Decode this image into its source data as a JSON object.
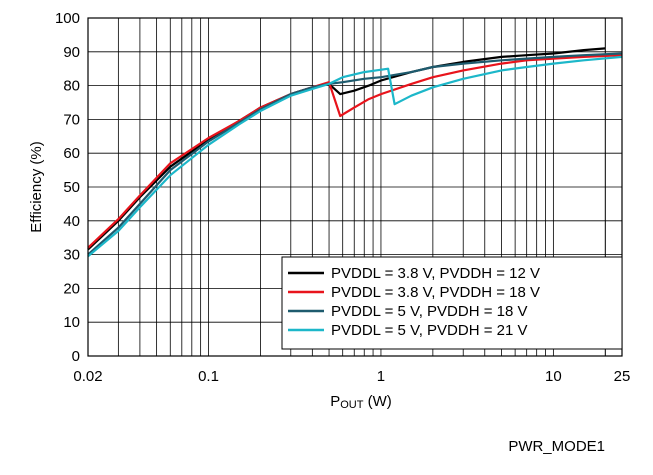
{
  "chart_data": {
    "type": "line",
    "xlabel_main": "P",
    "xlabel_sub": "OUT",
    "xlabel_unit": " (W)",
    "ylabel": "Efficiency (%)",
    "x_scale": "log",
    "xlim": [
      0.02,
      25
    ],
    "ylim": [
      0,
      100
    ],
    "x_ticks": [
      "0.02",
      "0.1",
      "1",
      "10",
      "25"
    ],
    "x_tick_values": [
      0.02,
      0.1,
      1,
      10,
      25
    ],
    "y_ticks": [
      "0",
      "10",
      "20",
      "30",
      "40",
      "50",
      "60",
      "70",
      "80",
      "90",
      "100"
    ],
    "y_tick_values": [
      0,
      10,
      20,
      30,
      40,
      50,
      60,
      70,
      80,
      90,
      100
    ],
    "grid": true,
    "legend_position": "bottom-right",
    "series": [
      {
        "name": "PVDDL = 3.8 V, PVDDH = 12 V",
        "color": "#000000",
        "x": [
          0.02,
          0.03,
          0.04,
          0.06,
          0.1,
          0.15,
          0.2,
          0.3,
          0.4,
          0.5,
          0.58,
          0.7,
          0.85,
          1.0,
          1.5,
          2,
          3,
          5,
          7,
          10,
          15,
          20
        ],
        "y": [
          31.5,
          40,
          47,
          56,
          64,
          69.5,
          73.5,
          77.5,
          79.5,
          80.5,
          77.5,
          78.5,
          80,
          81.5,
          84,
          85.5,
          87,
          88.5,
          89,
          89.5,
          90.5,
          91
        ]
      },
      {
        "name": "PVDDL = 3.8 V, PVDDH = 18 V",
        "color": "#e8141c",
        "x": [
          0.02,
          0.03,
          0.04,
          0.06,
          0.1,
          0.15,
          0.2,
          0.3,
          0.4,
          0.5,
          0.58,
          0.7,
          0.85,
          1.0,
          1.5,
          2,
          3,
          5,
          7,
          10,
          15,
          25
        ],
        "y": [
          32,
          40.5,
          47.5,
          57,
          64.5,
          69.5,
          73.5,
          77.5,
          79.5,
          81,
          71,
          73.5,
          76,
          77.5,
          80.5,
          82.5,
          84.5,
          86.5,
          87.5,
          88,
          88.5,
          89
        ]
      },
      {
        "name": "PVDDL = 5 V, PVDDH = 18 V",
        "color": "#1e5b6e",
        "x": [
          0.02,
          0.03,
          0.04,
          0.06,
          0.1,
          0.15,
          0.2,
          0.3,
          0.4,
          0.5,
          0.6,
          0.8,
          1.0,
          1.5,
          2,
          3,
          5,
          7,
          10,
          15,
          25
        ],
        "y": [
          30,
          38,
          45,
          55,
          63.5,
          69,
          73,
          77.5,
          79.5,
          80.5,
          81,
          82,
          82.5,
          84,
          85.5,
          86.5,
          87.5,
          88,
          88.5,
          89,
          89.5
        ]
      },
      {
        "name": "PVDDL = 5 V, PVDDH = 21 V",
        "color": "#1cb7c9",
        "x": [
          0.02,
          0.03,
          0.04,
          0.06,
          0.1,
          0.15,
          0.2,
          0.3,
          0.4,
          0.5,
          0.6,
          0.8,
          1.1,
          1.2,
          1.5,
          2,
          3,
          5,
          7,
          10,
          15,
          25
        ],
        "y": [
          29.5,
          37,
          44,
          53.5,
          62.5,
          68.5,
          72.5,
          77,
          79,
          80.5,
          82.5,
          84,
          85,
          74.5,
          77,
          79.5,
          82,
          84.5,
          85.5,
          86.5,
          87.5,
          88.5
        ]
      }
    ]
  },
  "caption": "PWR_MODE1"
}
